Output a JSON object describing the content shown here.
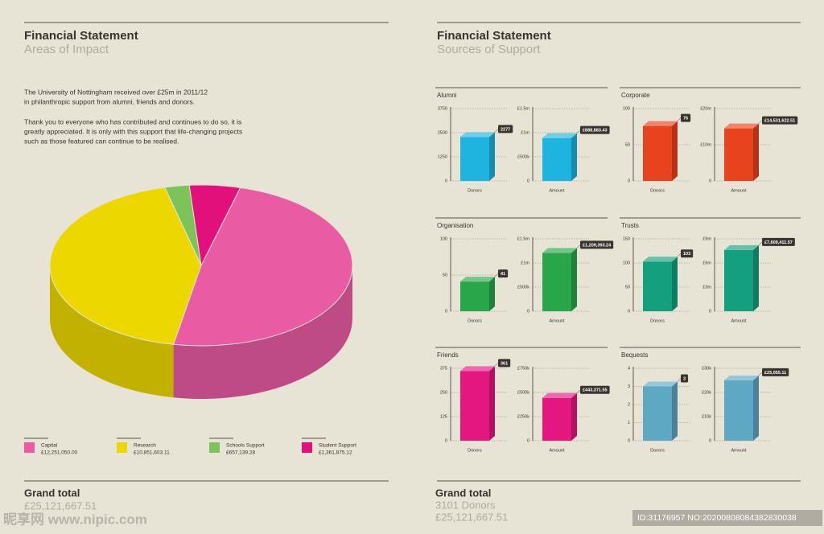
{
  "left": {
    "title": "Financial Statement",
    "subtitle": "Areas of Impact",
    "intro": [
      "The University of Nottingham received over £25m in 2011/12",
      "in philanthropic support from alumni, friends and donors.",
      "Thank you to everyone who has contributed and continues to do so, it is",
      "greatly appreciated. It is only with this support that life-changing projects",
      "such as those featured can continue to be realised."
    ],
    "total_label": "Grand total",
    "total_value": "£25,121,667.51"
  },
  "right": {
    "title": "Financial Statement",
    "subtitle": "Sources of Support",
    "total_label": "Grand total",
    "total_donors": "3101 Donors",
    "total_value": "£25,121,667.51"
  },
  "watermark": {
    "site": "昵享网 www.nipic.com",
    "id": "ID:31176957 NO:20200808084382830038"
  },
  "chart_data": [
    {
      "type": "pie",
      "categories": [
        "Capital",
        "Research",
        "Schools Support",
        "Student Support"
      ],
      "values": [
        12251050.0,
        10851603.11,
        657139.28,
        1361875.12
      ],
      "value_labels": [
        "£12,251,050.00",
        "£10,851,603.11",
        "£657,139.28",
        "£1,361,875.12"
      ],
      "colors": [
        "#e95ba3",
        "#ecd800",
        "#7cc35a",
        "#e2107a"
      ]
    },
    {
      "type": "bar",
      "title": "Alumni",
      "categories": [
        "Donors"
      ],
      "values": [
        2277
      ],
      "color": "#1fb3df",
      "ylim": [
        0,
        3750
      ],
      "yticks": [
        0,
        1250,
        2500,
        3750
      ]
    },
    {
      "type": "bar",
      "categories": [
        "Amount"
      ],
      "values": [
        888883.43
      ],
      "value_labels": [
        "£888,883.43"
      ],
      "color": "#1fb3df",
      "ylim": [
        0,
        1500000
      ],
      "yticks": [
        0,
        {
          "value": 500000,
          "label": "£500k"
        },
        {
          "value": 1000000,
          "label": "£1m"
        },
        {
          "value": 1500000,
          "label": "£1.5m"
        }
      ]
    },
    {
      "type": "bar",
      "title": "Corporate",
      "categories": [
        "Donors"
      ],
      "values": [
        76
      ],
      "color": "#e8431f",
      "ylim": [
        0,
        100
      ],
      "yticks": [
        0,
        50,
        100
      ]
    },
    {
      "type": "bar",
      "categories": [
        "Amount"
      ],
      "values": [
        14531622.51
      ],
      "value_labels": [
        "£14,531,622.51"
      ],
      "color": "#e8431f",
      "ylim": [
        0,
        20000000
      ],
      "yticks": [
        0,
        {
          "value": 10000000,
          "label": "£10m"
        },
        {
          "value": 20000000,
          "label": "£20m"
        }
      ]
    },
    {
      "type": "bar",
      "title": "Organisation",
      "categories": [
        "Donors"
      ],
      "values": [
        41
      ],
      "color": "#2aa64a",
      "ylim": [
        0,
        100
      ],
      "yticks": [
        0,
        50,
        100
      ]
    },
    {
      "type": "bar",
      "categories": [
        "Amount"
      ],
      "values": [
        1209393.24
      ],
      "value_labels": [
        "£1,209,393.24"
      ],
      "color": "#2aa64a",
      "ylim": [
        0,
        1500000
      ],
      "yticks": [
        0,
        {
          "value": 500000,
          "label": "£500k"
        },
        {
          "value": 1000000,
          "label": "£1m"
        },
        {
          "value": 1500000,
          "label": "£1.5m"
        }
      ]
    },
    {
      "type": "bar",
      "title": "Trusts",
      "categories": [
        "Donors"
      ],
      "values": [
        103
      ],
      "color": "#14a07e",
      "ylim": [
        0,
        150
      ],
      "yticks": [
        0,
        50,
        100,
        150
      ]
    },
    {
      "type": "bar",
      "categories": [
        "Amount"
      ],
      "values": [
        7609411.57
      ],
      "value_labels": [
        "£7,609,411.57"
      ],
      "color": "#14a07e",
      "ylim": [
        0,
        9000000
      ],
      "yticks": [
        0,
        {
          "value": 3000000,
          "label": "£3m"
        },
        {
          "value": 6000000,
          "label": "£6m"
        },
        {
          "value": 9000000,
          "label": "£9m"
        }
      ]
    },
    {
      "type": "bar",
      "title": "Friends",
      "categories": [
        "Donors"
      ],
      "values": [
        361
      ],
      "color": "#e3177f",
      "ylim": [
        0,
        375
      ],
      "yticks": [
        0,
        125,
        250,
        375
      ]
    },
    {
      "type": "bar",
      "categories": [
        "Amount"
      ],
      "values": [
        443371.55
      ],
      "value_labels": [
        "£443,371.55"
      ],
      "color": "#e3177f",
      "ylim": [
        0,
        750000
      ],
      "yticks": [
        0,
        {
          "value": 250000,
          "label": "£250k"
        },
        {
          "value": 500000,
          "label": "£500k"
        },
        {
          "value": 750000,
          "label": "£750k"
        }
      ]
    },
    {
      "type": "bar",
      "title": "Bequests",
      "categories": [
        "Donors"
      ],
      "values": [
        3
      ],
      "color": "#5fa8c4",
      "ylim": [
        0,
        4
      ],
      "yticks": [
        0,
        1,
        2,
        3,
        4
      ]
    },
    {
      "type": "bar",
      "categories": [
        "Amount"
      ],
      "values": [
        25055.11
      ],
      "value_labels": [
        "£25,055.11"
      ],
      "color": "#5fa8c4",
      "ylim": [
        0,
        30000
      ],
      "yticks": [
        0,
        {
          "value": 10000,
          "label": "£10k"
        },
        {
          "value": 20000,
          "label": "£20k"
        },
        {
          "value": 30000,
          "label": "£30k"
        }
      ]
    }
  ]
}
